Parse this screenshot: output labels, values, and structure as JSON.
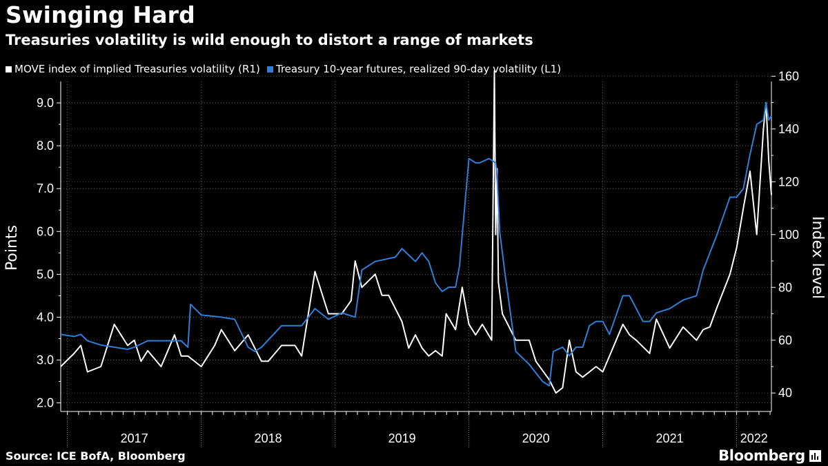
{
  "header": {
    "title": "Swinging Hard",
    "subtitle": "Treasuries volatility is wild enough to distort a range of markets"
  },
  "footer": {
    "source": "Source: ICE BofA, Bloomberg",
    "brand": "Bloomberg"
  },
  "chart_data": {
    "type": "line",
    "title": "Swinging Hard",
    "subtitle": "Treasuries volatility is wild enough to distort a range of markets",
    "left_axis": {
      "label": "Points",
      "range": [
        1.8,
        9.5
      ],
      "ticks": [
        2.0,
        3.0,
        4.0,
        5.0,
        6.0,
        7.0,
        8.0,
        9.0
      ],
      "tick_labels": [
        "2.0",
        "3.0",
        "4.0",
        "5.0",
        "6.0",
        "7.0",
        "8.0",
        "9.0"
      ]
    },
    "right_axis": {
      "label": "Index level",
      "range": [
        33,
        158
      ],
      "ticks": [
        40,
        60,
        80,
        100,
        120,
        140,
        160
      ],
      "tick_labels": [
        "40",
        "60",
        "80",
        "100",
        "120",
        "140",
        "160"
      ]
    },
    "x_axis": {
      "range": [
        2016.95,
        2022.26
      ],
      "years": [
        "2017",
        "2018",
        "2019",
        "2020",
        "2021",
        "2022"
      ],
      "year_boundaries": [
        2017.0,
        2018.0,
        2019.0,
        2020.0,
        2021.0,
        2022.0
      ]
    },
    "grid": true,
    "legend_position": "top-left",
    "series": [
      {
        "name": "MOVE index of implied Treasuries volatility (R1)",
        "axis": "right",
        "color": "#ffffff",
        "x": [
          2016.95,
          2017.05,
          2017.1,
          2017.15,
          2017.25,
          2017.35,
          2017.45,
          2017.5,
          2017.55,
          2017.6,
          2017.7,
          2017.8,
          2017.85,
          2017.9,
          2018.0,
          2018.1,
          2018.15,
          2018.25,
          2018.35,
          2018.45,
          2018.5,
          2018.6,
          2018.7,
          2018.75,
          2018.85,
          2018.95,
          2019.05,
          2019.12,
          2019.15,
          2019.2,
          2019.3,
          2019.35,
          2019.4,
          2019.5,
          2019.55,
          2019.6,
          2019.65,
          2019.7,
          2019.75,
          2019.8,
          2019.83,
          2019.9,
          2019.95,
          2020.0,
          2020.05,
          2020.1,
          2020.17,
          2020.19,
          2020.2,
          2020.21,
          2020.22,
          2020.25,
          2020.3,
          2020.35,
          2020.45,
          2020.5,
          2020.6,
          2020.65,
          2020.7,
          2020.75,
          2020.8,
          2020.85,
          2020.95,
          2021.0,
          2021.1,
          2021.15,
          2021.2,
          2021.25,
          2021.35,
          2021.4,
          2021.5,
          2021.6,
          2021.7,
          2021.75,
          2021.8,
          2021.85,
          2021.95,
          2022.0,
          2022.05,
          2022.1,
          2022.15,
          2022.2,
          2022.22,
          2022.24,
          2022.26
        ],
        "values": [
          50,
          55,
          58,
          48,
          50,
          66,
          58,
          60,
          52,
          56,
          50,
          62,
          54,
          54,
          50,
          58,
          64,
          56,
          62,
          52,
          52,
          58,
          58,
          54,
          86,
          70,
          70,
          75,
          90,
          80,
          85,
          77,
          77,
          67,
          57,
          62,
          57,
          54,
          56,
          54,
          70,
          64,
          80,
          66,
          62,
          66,
          60,
          162,
          100,
          125,
          82,
          70,
          65,
          60,
          60,
          52,
          45,
          40,
          42,
          60,
          48,
          46,
          50,
          48,
          60,
          66,
          62,
          60,
          55,
          68,
          57,
          65,
          60,
          64,
          65,
          72,
          85,
          95,
          110,
          124,
          100,
          140,
          150,
          128,
          115
        ]
      },
      {
        "name": "Treasury 10-year futures, realized 90-day volatility (L1)",
        "axis": "left",
        "color": "#2e7fd9",
        "x": [
          2016.95,
          2017.05,
          2017.1,
          2017.15,
          2017.25,
          2017.35,
          2017.45,
          2017.5,
          2017.6,
          2017.7,
          2017.85,
          2017.9,
          2017.92,
          2018.0,
          2018.15,
          2018.25,
          2018.35,
          2018.4,
          2018.45,
          2018.6,
          2018.7,
          2018.75,
          2018.85,
          2018.95,
          2019.05,
          2019.15,
          2019.2,
          2019.3,
          2019.45,
          2019.5,
          2019.6,
          2019.65,
          2019.7,
          2019.75,
          2019.8,
          2019.85,
          2019.9,
          2019.93,
          2020.0,
          2020.05,
          2020.08,
          2020.15,
          2020.2,
          2020.21,
          2020.23,
          2020.27,
          2020.35,
          2020.45,
          2020.5,
          2020.55,
          2020.6,
          2020.63,
          2020.7,
          2020.75,
          2020.8,
          2020.85,
          2020.9,
          2020.95,
          2021.0,
          2021.05,
          2021.15,
          2021.2,
          2021.25,
          2021.3,
          2021.35,
          2021.4,
          2021.5,
          2021.6,
          2021.7,
          2021.75,
          2021.8,
          2021.85,
          2021.95,
          2022.0,
          2022.05,
          2022.1,
          2022.15,
          2022.2,
          2022.22,
          2022.24,
          2022.26
        ],
        "values": [
          3.6,
          3.55,
          3.6,
          3.45,
          3.35,
          3.3,
          3.25,
          3.3,
          3.45,
          3.45,
          3.45,
          3.3,
          4.3,
          4.05,
          4.0,
          3.95,
          3.3,
          3.2,
          3.3,
          3.8,
          3.8,
          3.8,
          4.2,
          3.95,
          4.1,
          4.0,
          5.1,
          5.3,
          5.4,
          5.6,
          5.3,
          5.5,
          5.3,
          4.8,
          4.6,
          4.7,
          4.7,
          5.2,
          7.7,
          7.6,
          7.6,
          7.7,
          7.6,
          7.3,
          6.0,
          5.0,
          3.2,
          2.9,
          2.7,
          2.5,
          2.4,
          3.2,
          3.3,
          3.1,
          3.3,
          3.3,
          3.8,
          3.9,
          3.9,
          3.6,
          4.5,
          4.5,
          4.2,
          3.9,
          3.9,
          4.1,
          4.2,
          4.4,
          4.5,
          5.1,
          5.5,
          5.9,
          6.8,
          6.8,
          7.0,
          7.8,
          8.5,
          8.6,
          9.0,
          8.6,
          8.7
        ]
      }
    ]
  }
}
